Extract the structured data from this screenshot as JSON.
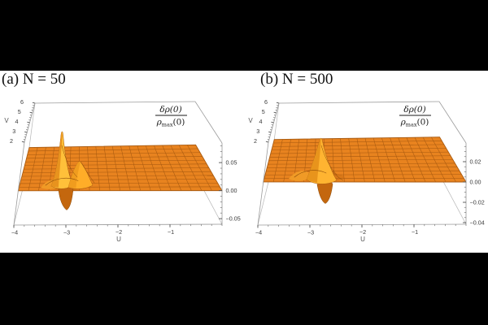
{
  "page": {
    "background": "#000000",
    "figure_background": "#ffffff"
  },
  "chart_data": [
    {
      "type": "surface",
      "title": "(a) N = 50",
      "xlabel": "U",
      "ylabel": "V",
      "zlabel": {
        "numerator": "δρ(0)",
        "denominator_rho": "ρ",
        "denominator_sub": "max",
        "denominator_arg": "(0)"
      },
      "x": {
        "range": [
          -4,
          0
        ],
        "tick_labels": [
          "−4",
          "−3",
          "−2",
          "−1"
        ],
        "tick_values": [
          -4,
          -3,
          -2,
          -1
        ],
        "minor_step": 0.2
      },
      "y": {
        "range": [
          2,
          6
        ],
        "tick_labels": [
          "2",
          "3",
          "4",
          "5",
          "6"
        ],
        "tick_values": [
          2,
          3,
          4,
          5,
          6
        ],
        "minor_step": 0.25
      },
      "z": {
        "range_est": [
          -0.06,
          0.085
        ],
        "tick_labels": [
          "0.05",
          "0.00",
          "−0.05"
        ],
        "tick_values": [
          0.05,
          0,
          -0.05
        ],
        "minor_step": 0.01
      },
      "surface": {
        "color": "#E8831F",
        "mesh_color": "#A85A10",
        "baseline_z": 0,
        "description": "Surface is flat at z≈0 everywhere except a localized wave-packet oscillation near U≈−3.1, V≈2.6",
        "feature": {
          "center_u": -3.1,
          "center_v": 2.6,
          "peak_z_est": 0.09,
          "trough_z_est": -0.05
        }
      },
      "mesh": true,
      "legend": "none"
    },
    {
      "type": "surface",
      "title": "(b) N = 500",
      "xlabel": "U",
      "ylabel": "V",
      "zlabel": {
        "numerator": "δρ(0)",
        "denominator_rho": "ρ",
        "denominator_sub": "max",
        "denominator_arg": "(0)"
      },
      "x": {
        "range": [
          -4,
          0
        ],
        "tick_labels": [
          "−4",
          "−3",
          "−2",
          "−1"
        ],
        "tick_values": [
          -4,
          -3,
          -2,
          -1
        ],
        "minor_step": 0.2
      },
      "y": {
        "range": [
          2,
          6
        ],
        "tick_labels": [
          "2",
          "3",
          "4",
          "5",
          "6"
        ],
        "tick_values": [
          2,
          3,
          4,
          5,
          6
        ],
        "minor_step": 0.25
      },
      "z": {
        "range_est": [
          -0.0416,
          0.0384
        ],
        "tick_labels": [
          "0.02",
          "0.00",
          "−0.02",
          "−0.04"
        ],
        "tick_values": [
          0.02,
          0,
          -0.02,
          -0.04
        ],
        "minor_step": 0.005
      },
      "surface": {
        "color": "#E8831F",
        "mesh_color": "#A85A10",
        "baseline_z": 0,
        "description": "Surface is flat at z≈0 everywhere except a smaller localized wave-packet oscillation near U≈−2.95, V≈2.9",
        "feature": {
          "center_u": -2.95,
          "center_v": 2.9,
          "peak_z_est": 0.036,
          "trough_z_est": -0.022
        }
      },
      "mesh": true,
      "legend": "none"
    }
  ]
}
